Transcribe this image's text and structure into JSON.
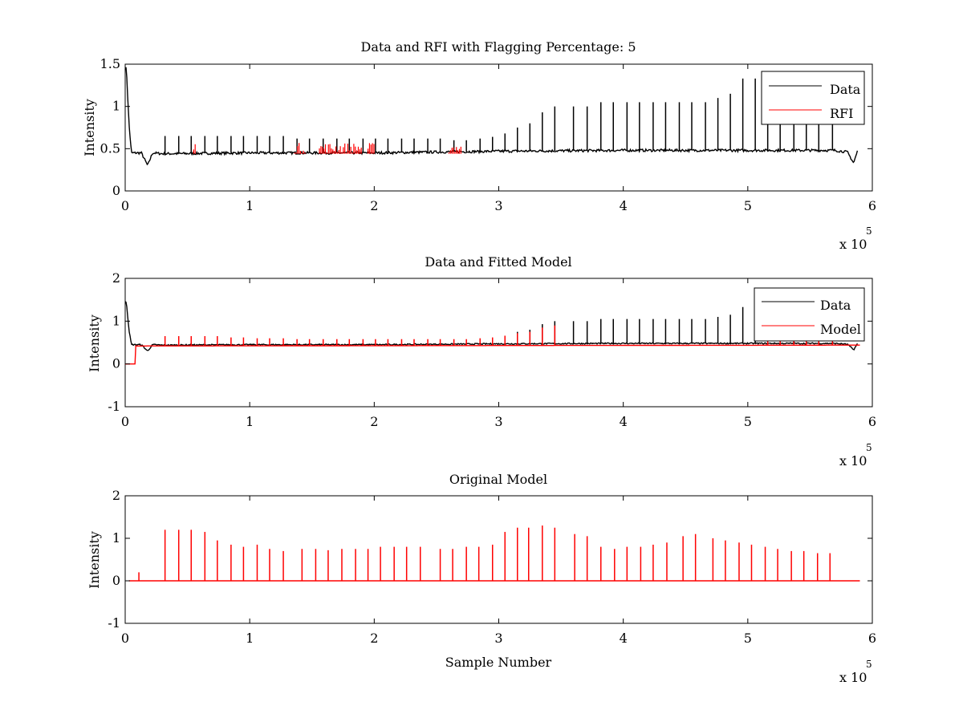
{
  "chart_data": [
    {
      "type": "line",
      "title": "Data and RFI with Flagging Percentage: 5",
      "xlabel": "",
      "ylabel": "Intensity",
      "xlim": [
        0,
        6
      ],
      "ylim": [
        0,
        1.5
      ],
      "xticks": [
        "0",
        "1",
        "2",
        "3",
        "4",
        "5",
        "6"
      ],
      "yticks": [
        "0",
        "0.5",
        "1",
        "1.5"
      ],
      "x_exponent_label": "x 10",
      "x_exponent_power": "5",
      "legend": {
        "position": "top-right",
        "entries": [
          "Data",
          "RFI"
        ]
      },
      "series": [
        {
          "name": "Data",
          "color": "#000000",
          "baseline": [
            [
              0,
              1.45
            ],
            [
              0.01,
              1.45
            ],
            [
              0.03,
              0.8
            ],
            [
              0.05,
              0.45
            ],
            [
              0.13,
              0.45
            ],
            [
              0.18,
              0.3
            ],
            [
              0.22,
              0.45
            ],
            [
              0.3,
              0.44
            ],
            [
              1.0,
              0.45
            ],
            [
              2.0,
              0.45
            ],
            [
              3.0,
              0.47
            ],
            [
              4.0,
              0.48
            ],
            [
              5.0,
              0.48
            ],
            [
              5.7,
              0.48
            ],
            [
              5.8,
              0.46
            ],
            [
              5.85,
              0.33
            ],
            [
              5.88,
              0.47
            ]
          ],
          "peaks": [
            [
              0.32,
              0.65
            ],
            [
              0.43,
              0.65
            ],
            [
              0.53,
              0.65
            ],
            [
              0.64,
              0.65
            ],
            [
              0.74,
              0.65
            ],
            [
              0.85,
              0.65
            ],
            [
              0.95,
              0.65
            ],
            [
              1.06,
              0.65
            ],
            [
              1.16,
              0.65
            ],
            [
              1.27,
              0.65
            ],
            [
              1.38,
              0.62
            ],
            [
              1.48,
              0.62
            ],
            [
              1.59,
              0.62
            ],
            [
              1.7,
              0.62
            ],
            [
              1.8,
              0.62
            ],
            [
              1.91,
              0.62
            ],
            [
              2.01,
              0.62
            ],
            [
              2.11,
              0.62
            ],
            [
              2.22,
              0.62
            ],
            [
              2.32,
              0.62
            ],
            [
              2.43,
              0.62
            ],
            [
              2.53,
              0.62
            ],
            [
              2.64,
              0.6
            ],
            [
              2.74,
              0.6
            ],
            [
              2.85,
              0.62
            ],
            [
              2.95,
              0.64
            ],
            [
              3.05,
              0.68
            ],
            [
              3.15,
              0.75
            ],
            [
              3.25,
              0.8
            ],
            [
              3.35,
              0.93
            ],
            [
              3.45,
              1.0
            ],
            [
              3.6,
              1.0
            ],
            [
              3.71,
              1.0
            ],
            [
              3.82,
              1.05
            ],
            [
              3.92,
              1.05
            ],
            [
              4.03,
              1.05
            ],
            [
              4.13,
              1.05
            ],
            [
              4.24,
              1.05
            ],
            [
              4.34,
              1.05
            ],
            [
              4.45,
              1.05
            ],
            [
              4.55,
              1.05
            ],
            [
              4.66,
              1.05
            ],
            [
              4.76,
              1.1
            ],
            [
              4.86,
              1.15
            ],
            [
              4.96,
              1.33
            ],
            [
              5.06,
              1.33
            ],
            [
              5.16,
              1.2
            ],
            [
              5.26,
              1.15
            ],
            [
              5.37,
              1.1
            ],
            [
              5.47,
              1.05
            ],
            [
              5.57,
              1.05
            ],
            [
              5.68,
              1.05
            ]
          ]
        },
        {
          "name": "RFI",
          "color": "#ff0000",
          "regions": [
            [
              0.55,
              0.57
            ],
            [
              1.36,
              1.45
            ],
            [
              1.56,
              1.9
            ],
            [
              1.95,
              2.0
            ],
            [
              2.6,
              2.7
            ]
          ]
        }
      ]
    },
    {
      "type": "line",
      "title": "Data and Fitted Model",
      "xlabel": "",
      "ylabel": "Intensity",
      "xlim": [
        0,
        6
      ],
      "ylim": [
        -1,
        2
      ],
      "xticks": [
        "0",
        "1",
        "2",
        "3",
        "4",
        "5",
        "6"
      ],
      "yticks": [
        "-1",
        "0",
        "1",
        "2"
      ],
      "x_exponent_label": "x 10",
      "x_exponent_power": "5",
      "legend": {
        "position": "top-right",
        "entries": [
          "Data",
          "Model"
        ]
      },
      "series": [
        {
          "name": "Data",
          "color": "#000000",
          "baseline": [
            [
              0,
              1.45
            ],
            [
              0.01,
              1.45
            ],
            [
              0.03,
              0.8
            ],
            [
              0.05,
              0.45
            ],
            [
              0.13,
              0.45
            ],
            [
              0.18,
              0.3
            ],
            [
              0.22,
              0.45
            ],
            [
              0.3,
              0.44
            ],
            [
              1.0,
              0.45
            ],
            [
              2.0,
              0.45
            ],
            [
              3.0,
              0.47
            ],
            [
              4.0,
              0.48
            ],
            [
              5.0,
              0.48
            ],
            [
              5.7,
              0.48
            ],
            [
              5.8,
              0.46
            ],
            [
              5.85,
              0.33
            ],
            [
              5.88,
              0.47
            ]
          ],
          "peaks": [
            [
              3.15,
              0.75
            ],
            [
              3.25,
              0.8
            ],
            [
              3.35,
              0.93
            ],
            [
              3.45,
              1.0
            ],
            [
              3.6,
              1.0
            ],
            [
              3.71,
              1.0
            ],
            [
              3.82,
              1.05
            ],
            [
              3.92,
              1.05
            ],
            [
              4.03,
              1.05
            ],
            [
              4.13,
              1.05
            ],
            [
              4.24,
              1.05
            ],
            [
              4.34,
              1.05
            ],
            [
              4.45,
              1.05
            ],
            [
              4.55,
              1.05
            ],
            [
              4.66,
              1.05
            ],
            [
              4.76,
              1.1
            ],
            [
              4.86,
              1.15
            ],
            [
              4.96,
              1.33
            ],
            [
              5.06,
              1.33
            ]
          ]
        },
        {
          "name": "Model",
          "color": "#ff0000",
          "baseline": [
            [
              0,
              0
            ],
            [
              0.08,
              0
            ],
            [
              0.08,
              0.42
            ],
            [
              5.9,
              0.44
            ]
          ],
          "peaks": [
            [
              0.32,
              0.65
            ],
            [
              0.43,
              0.65
            ],
            [
              0.53,
              0.65
            ],
            [
              0.64,
              0.65
            ],
            [
              0.74,
              0.65
            ],
            [
              0.85,
              0.62
            ],
            [
              0.95,
              0.62
            ],
            [
              1.06,
              0.6
            ],
            [
              1.16,
              0.6
            ],
            [
              1.27,
              0.6
            ],
            [
              1.38,
              0.58
            ],
            [
              1.48,
              0.58
            ],
            [
              1.59,
              0.58
            ],
            [
              1.7,
              0.58
            ],
            [
              1.8,
              0.58
            ],
            [
              1.91,
              0.58
            ],
            [
              2.01,
              0.58
            ],
            [
              2.11,
              0.58
            ],
            [
              2.22,
              0.58
            ],
            [
              2.32,
              0.58
            ],
            [
              2.43,
              0.58
            ],
            [
              2.53,
              0.58
            ],
            [
              2.64,
              0.58
            ],
            [
              2.74,
              0.58
            ],
            [
              2.85,
              0.6
            ],
            [
              2.95,
              0.62
            ],
            [
              3.05,
              0.66
            ],
            [
              3.15,
              0.72
            ],
            [
              3.25,
              0.75
            ],
            [
              3.35,
              0.85
            ],
            [
              3.45,
              0.9
            ],
            [
              5.16,
              0.65
            ],
            [
              5.26,
              0.6
            ],
            [
              5.37,
              0.58
            ],
            [
              5.47,
              0.58
            ],
            [
              5.57,
              0.56
            ],
            [
              5.68,
              0.56
            ]
          ]
        }
      ]
    },
    {
      "type": "line",
      "title": "Original Model",
      "xlabel": "Sample Number",
      "ylabel": "Intensity",
      "xlim": [
        0,
        6
      ],
      "ylim": [
        -1,
        2
      ],
      "xticks": [
        "0",
        "1",
        "2",
        "3",
        "4",
        "5",
        "6"
      ],
      "yticks": [
        "-1",
        "0",
        "1",
        "2"
      ],
      "x_exponent_label": "x 10",
      "x_exponent_power": "5",
      "series": [
        {
          "color": "#ff0000",
          "baseline": [
            [
              0.03,
              0
            ],
            [
              5.9,
              0
            ]
          ],
          "peaks": [
            [
              0.11,
              0.2
            ],
            [
              0.32,
              1.2
            ],
            [
              0.43,
              1.2
            ],
            [
              0.53,
              1.2
            ],
            [
              0.64,
              1.15
            ],
            [
              0.74,
              0.95
            ],
            [
              0.85,
              0.85
            ],
            [
              0.95,
              0.8
            ],
            [
              1.06,
              0.85
            ],
            [
              1.16,
              0.75
            ],
            [
              1.27,
              0.7
            ],
            [
              1.42,
              0.75
            ],
            [
              1.53,
              0.75
            ],
            [
              1.63,
              0.72
            ],
            [
              1.74,
              0.75
            ],
            [
              1.85,
              0.75
            ],
            [
              1.95,
              0.75
            ],
            [
              2.05,
              0.8
            ],
            [
              2.16,
              0.8
            ],
            [
              2.26,
              0.8
            ],
            [
              2.37,
              0.8
            ],
            [
              2.53,
              0.75
            ],
            [
              2.63,
              0.75
            ],
            [
              2.74,
              0.8
            ],
            [
              2.84,
              0.8
            ],
            [
              2.95,
              0.85
            ],
            [
              3.05,
              1.15
            ],
            [
              3.15,
              1.25
            ],
            [
              3.24,
              1.25
            ],
            [
              3.35,
              1.3
            ],
            [
              3.45,
              1.25
            ],
            [
              3.61,
              1.1
            ],
            [
              3.71,
              1.05
            ],
            [
              3.82,
              0.8
            ],
            [
              3.93,
              0.75
            ],
            [
              4.03,
              0.8
            ],
            [
              4.14,
              0.8
            ],
            [
              4.24,
              0.85
            ],
            [
              4.35,
              0.9
            ],
            [
              4.48,
              1.05
            ],
            [
              4.58,
              1.1
            ],
            [
              4.72,
              1.0
            ],
            [
              4.82,
              0.95
            ],
            [
              4.93,
              0.9
            ],
            [
              5.03,
              0.85
            ],
            [
              5.14,
              0.8
            ],
            [
              5.24,
              0.75
            ],
            [
              5.35,
              0.7
            ],
            [
              5.45,
              0.7
            ],
            [
              5.56,
              0.65
            ],
            [
              5.66,
              0.65
            ]
          ]
        }
      ]
    }
  ]
}
